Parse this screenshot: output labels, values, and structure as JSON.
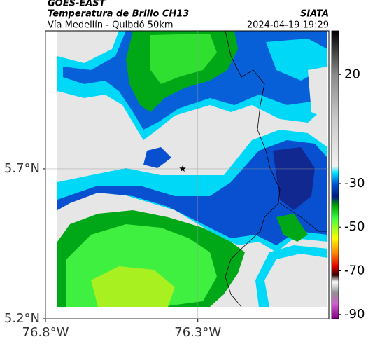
{
  "chart_data": {
    "type": "map",
    "source": "GOES-EAST",
    "title": "Temperatura de Brillo CH13",
    "subtitle": "Vía Medellín - Quibdó 50km",
    "credit": "SIATA",
    "timestamp": "2024-04-19 19:29",
    "xlim": [
      -76.8,
      -75.87
    ],
    "ylim": [
      5.2,
      6.16
    ],
    "xticks": [
      {
        "value": -76.8,
        "label": "76.8°W"
      },
      {
        "value": -76.3,
        "label": "76.3°W"
      }
    ],
    "yticks": [
      {
        "value": 5.2,
        "label": "5.2°N"
      },
      {
        "value": 5.7,
        "label": "5.7°N"
      }
    ],
    "grid": true,
    "marker": {
      "lon": -76.35,
      "lat": 5.7
    },
    "colorbar": {
      "clim": [
        -92,
        40
      ],
      "ticks": [
        20,
        -30,
        -50,
        -70,
        -90
      ],
      "stops": [
        {
          "value": 40,
          "color": "#000000"
        },
        {
          "value": 20,
          "color": "#8a8a8a"
        },
        {
          "value": 0,
          "color": "#c8c8c8"
        },
        {
          "value": -22,
          "color": "#f2f2f2"
        },
        {
          "value": -25,
          "color": "#00e5ff"
        },
        {
          "value": -30,
          "color": "#0058d0"
        },
        {
          "value": -36,
          "color": "#001a80"
        },
        {
          "value": -40,
          "color": "#00a000"
        },
        {
          "value": -46,
          "color": "#40ff40"
        },
        {
          "value": -55,
          "color": "#ffff00"
        },
        {
          "value": -62,
          "color": "#ff8000"
        },
        {
          "value": -68,
          "color": "#e00000"
        },
        {
          "value": -72,
          "color": "#300000"
        },
        {
          "value": -75,
          "color": "#ffffff"
        },
        {
          "value": -80,
          "color": "#909090"
        },
        {
          "value": -85,
          "color": "#d060d0"
        },
        {
          "value": -92,
          "color": "#800080"
        }
      ]
    }
  }
}
